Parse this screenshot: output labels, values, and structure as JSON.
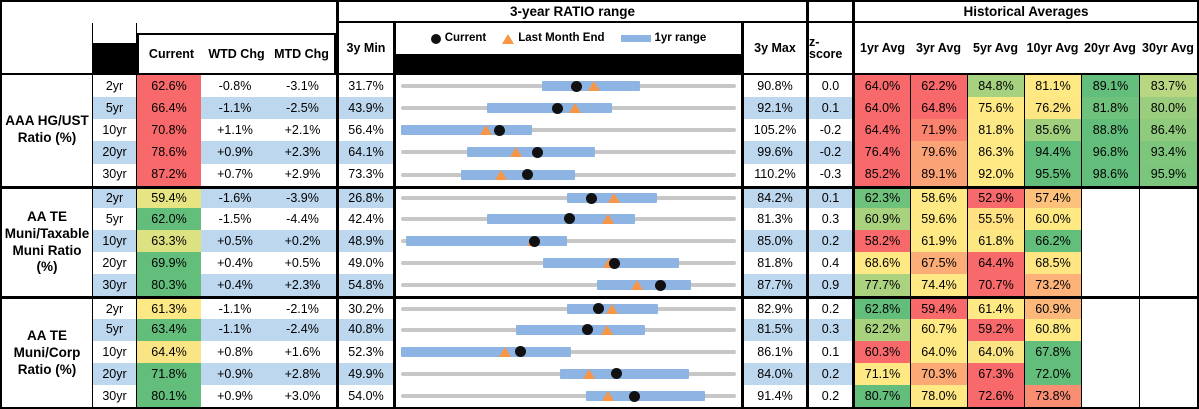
{
  "header": {
    "range_title": "3-year RATIO range",
    "hist_title": "Historical Averages",
    "col_current": "Current",
    "col_wtd": "WTD Chg",
    "col_mtd": "MTD Chg",
    "col_min": "3y Min",
    "col_max": "3y Max",
    "col_z": "z-score",
    "avg_cols": [
      "1yr Avg",
      "3yr Avg",
      "5yr Avg",
      "10yr Avg",
      "20yr Avg",
      "30yr Avg"
    ],
    "legend": {
      "current": "Current",
      "last_month": "Last Month End",
      "range": "1yr range"
    }
  },
  "colors": {
    "stripe": "#BDD7EE",
    "bar": "#8DB4E3",
    "track": "#C7C7C7",
    "triangle": "#F79646",
    "dot": "#111111",
    "heat_red": "#F8696B",
    "heat_yellow": "#FFE984",
    "heat_green": "#63BE7B"
  },
  "chart_data": {
    "type": "table",
    "groups": [
      {
        "label": "AAA HG/UST\nRatio (%)",
        "rows": [
          {
            "tenor": "2yr",
            "current": "62.6%",
            "current_bg": "#F8696B",
            "wtd_chg": "-0.8%",
            "mtd_chg": "-3.1%",
            "min_3y": 31.7,
            "max_3y": 90.8,
            "z_score": "0.0",
            "last_month_end": 65.7,
            "range_1yr": [
              56.5,
              73.8
            ],
            "averages": [
              {
                "v": "64.0%",
                "c": "#F8696B"
              },
              {
                "v": "62.2%",
                "c": "#F8696B"
              },
              {
                "v": "84.8%",
                "c": "#A6D17F"
              },
              {
                "v": "81.1%",
                "c": "#FFE984"
              },
              {
                "v": "89.1%",
                "c": "#63BE7B"
              },
              {
                "v": "83.7%",
                "c": "#B9D780"
              }
            ]
          },
          {
            "tenor": "5yr",
            "current": "66.4%",
            "current_bg": "#F8696B",
            "wtd_chg": "-1.1%",
            "mtd_chg": "-2.5%",
            "min_3y": 43.9,
            "max_3y": 92.1,
            "z_score": "0.1",
            "last_month_end": 68.9,
            "range_1yr": [
              56.3,
              74.3
            ],
            "averages": [
              {
                "v": "64.0%",
                "c": "#F8696B"
              },
              {
                "v": "64.8%",
                "c": "#F8696B"
              },
              {
                "v": "75.6%",
                "c": "#FFE984"
              },
              {
                "v": "76.2%",
                "c": "#FEE683"
              },
              {
                "v": "81.8%",
                "c": "#6FC27C"
              },
              {
                "v": "80.0%",
                "c": "#9BCD7E"
              }
            ]
          },
          {
            "tenor": "10yr",
            "current": "70.8%",
            "current_bg": "#F8696B",
            "wtd_chg": "+1.1%",
            "mtd_chg": "+2.1%",
            "min_3y": 56.4,
            "max_3y": 105.2,
            "z_score": "-0.2",
            "last_month_end": 68.7,
            "range_1yr": [
              56.4,
              75.5
            ],
            "averages": [
              {
                "v": "64.4%",
                "c": "#F8696B"
              },
              {
                "v": "71.9%",
                "c": "#F9836F"
              },
              {
                "v": "81.8%",
                "c": "#FCE884"
              },
              {
                "v": "85.6%",
                "c": "#A0CF7E"
              },
              {
                "v": "88.8%",
                "c": "#63BE7B"
              },
              {
                "v": "86.4%",
                "c": "#8FCA7D"
              }
            ]
          },
          {
            "tenor": "20yr",
            "current": "78.6%",
            "current_bg": "#F8696B",
            "wtd_chg": "+0.9%",
            "mtd_chg": "+2.3%",
            "min_3y": 64.1,
            "max_3y": 99.6,
            "z_score": "-0.2",
            "last_month_end": 76.3,
            "range_1yr": [
              71.1,
              84.7
            ],
            "averages": [
              {
                "v": "76.4%",
                "c": "#F8696B"
              },
              {
                "v": "79.6%",
                "c": "#FBA376"
              },
              {
                "v": "86.3%",
                "c": "#FFE984"
              },
              {
                "v": "94.4%",
                "c": "#63BE7B"
              },
              {
                "v": "96.8%",
                "c": "#63BE7B"
              },
              {
                "v": "93.4%",
                "c": "#7FC67D"
              }
            ]
          },
          {
            "tenor": "30yr",
            "current": "87.2%",
            "current_bg": "#F8696B",
            "wtd_chg": "+0.7%",
            "mtd_chg": "+2.9%",
            "min_3y": 73.3,
            "max_3y": 110.2,
            "z_score": "-0.3",
            "last_month_end": 84.3,
            "range_1yr": [
              79.9,
              92.5
            ],
            "averages": [
              {
                "v": "85.2%",
                "c": "#F8696B"
              },
              {
                "v": "89.1%",
                "c": "#FBA376"
              },
              {
                "v": "92.0%",
                "c": "#FFE984"
              },
              {
                "v": "95.5%",
                "c": "#63BE7B"
              },
              {
                "v": "98.6%",
                "c": "#63BE7B"
              },
              {
                "v": "95.9%",
                "c": "#7CC57D"
              }
            ]
          }
        ]
      },
      {
        "label": "AA TE\nMuni/Taxable\nMuni Ratio\n(%)",
        "rows": [
          {
            "tenor": "2yr",
            "current": "59.4%",
            "current_bg": "#E7E583",
            "wtd_chg": "-1.6%",
            "mtd_chg": "-3.9%",
            "min_3y": 26.8,
            "max_3y": 84.2,
            "z_score": "0.1",
            "last_month_end": 63.3,
            "range_1yr": [
              55.2,
              70.6
            ],
            "averages": [
              {
                "v": "62.3%",
                "c": "#6EC27C"
              },
              {
                "v": "58.6%",
                "c": "#FFE984"
              },
              {
                "v": "52.9%",
                "c": "#F8696B"
              },
              {
                "v": "57.4%",
                "c": "#FDC17C"
              },
              null,
              null
            ]
          },
          {
            "tenor": "5yr",
            "current": "62.0%",
            "current_bg": "#63BE7B",
            "wtd_chg": "-1.5%",
            "mtd_chg": "-4.4%",
            "min_3y": 42.4,
            "max_3y": 81.3,
            "z_score": "0.3",
            "last_month_end": 66.4,
            "range_1yr": [
              52.4,
              69.6
            ],
            "averages": [
              {
                "v": "60.9%",
                "c": "#A9D27F"
              },
              {
                "v": "59.6%",
                "c": "#FFE984"
              },
              {
                "v": "55.5%",
                "c": "#FFE182"
              },
              {
                "v": "60.0%",
                "c": "#FEE983"
              },
              null,
              null
            ]
          },
          {
            "tenor": "10yr",
            "current": "63.3%",
            "current_bg": "#DCE182",
            "wtd_chg": "+0.5%",
            "mtd_chg": "+0.2%",
            "min_3y": 48.9,
            "max_3y": 85.0,
            "z_score": "0.2",
            "last_month_end": 63.1,
            "range_1yr": [
              49.4,
              66.8
            ],
            "averages": [
              {
                "v": "58.2%",
                "c": "#F8696B"
              },
              {
                "v": "61.9%",
                "c": "#FFE984"
              },
              {
                "v": "61.8%",
                "c": "#FDE783"
              },
              {
                "v": "66.2%",
                "c": "#63BE7B"
              },
              null,
              null
            ]
          },
          {
            "tenor": "20yr",
            "current": "69.9%",
            "current_bg": "#63BE7B",
            "wtd_chg": "+0.4%",
            "mtd_chg": "+0.5%",
            "min_3y": 49.0,
            "max_3y": 81.8,
            "z_score": "0.4",
            "last_month_end": 69.4,
            "range_1yr": [
              62.9,
              76.2
            ],
            "averages": [
              {
                "v": "68.6%",
                "c": "#FFE984"
              },
              {
                "v": "67.5%",
                "c": "#FCAC77"
              },
              {
                "v": "64.4%",
                "c": "#F8696B"
              },
              {
                "v": "68.5%",
                "c": "#FFE683"
              },
              null,
              null
            ]
          },
          {
            "tenor": "30yr",
            "current": "80.3%",
            "current_bg": "#63BE7B",
            "wtd_chg": "+0.4%",
            "mtd_chg": "+2.3%",
            "min_3y": 54.8,
            "max_3y": 87.7,
            "z_score": "0.9",
            "last_month_end": 78.0,
            "range_1yr": [
              74.1,
              83.3
            ],
            "averages": [
              {
                "v": "77.7%",
                "c": "#ABD37F"
              },
              {
                "v": "74.4%",
                "c": "#FFE984"
              },
              {
                "v": "70.7%",
                "c": "#F8696B"
              },
              {
                "v": "73.2%",
                "c": "#FCB278"
              },
              null,
              null
            ]
          }
        ]
      },
      {
        "label": "AA TE\nMuni/Corp\nRatio (%)",
        "rows": [
          {
            "tenor": "2yr",
            "current": "61.3%",
            "current_bg": "#FCE884",
            "wtd_chg": "-1.1%",
            "mtd_chg": "-2.1%",
            "min_3y": 30.2,
            "max_3y": 82.9,
            "z_score": "0.2",
            "last_month_end": 63.4,
            "range_1yr": [
              56.3,
              70.7
            ],
            "averages": [
              {
                "v": "62.8%",
                "c": "#63BE7B"
              },
              {
                "v": "59.4%",
                "c": "#F8696B"
              },
              {
                "v": "61.4%",
                "c": "#FFE984"
              },
              {
                "v": "60.9%",
                "c": "#FCB87A"
              },
              null,
              null
            ]
          },
          {
            "tenor": "5yr",
            "current": "63.4%",
            "current_bg": "#63BE7B",
            "wtd_chg": "-1.1%",
            "mtd_chg": "-2.4%",
            "min_3y": 40.8,
            "max_3y": 81.5,
            "z_score": "0.3",
            "last_month_end": 65.8,
            "range_1yr": [
              54.8,
              70.5
            ],
            "averages": [
              {
                "v": "62.2%",
                "c": "#A9D27F"
              },
              {
                "v": "60.7%",
                "c": "#FFE984"
              },
              {
                "v": "59.2%",
                "c": "#F8696B"
              },
              {
                "v": "60.8%",
                "c": "#FEE983"
              },
              null,
              null
            ]
          },
          {
            "tenor": "10yr",
            "current": "64.4%",
            "current_bg": "#FAE585",
            "wtd_chg": "+0.8%",
            "mtd_chg": "+1.6%",
            "min_3y": 52.3,
            "max_3y": 86.1,
            "z_score": "0.1",
            "last_month_end": 62.8,
            "range_1yr": [
              52.3,
              69.5
            ],
            "averages": [
              {
                "v": "60.3%",
                "c": "#F8696B"
              },
              {
                "v": "64.0%",
                "c": "#FFE984"
              },
              {
                "v": "64.0%",
                "c": "#FAE483"
              },
              {
                "v": "67.8%",
                "c": "#63BE7B"
              },
              null,
              null
            ]
          },
          {
            "tenor": "20yr",
            "current": "71.8%",
            "current_bg": "#63BE7B",
            "wtd_chg": "+0.9%",
            "mtd_chg": "+2.8%",
            "min_3y": 49.9,
            "max_3y": 84.0,
            "z_score": "0.2",
            "last_month_end": 69.0,
            "range_1yr": [
              66.1,
              79.2
            ],
            "averages": [
              {
                "v": "71.1%",
                "c": "#FFE984"
              },
              {
                "v": "70.3%",
                "c": "#FCA976"
              },
              {
                "v": "67.3%",
                "c": "#F8696B"
              },
              {
                "v": "72.0%",
                "c": "#63BE7B"
              },
              null,
              null
            ]
          },
          {
            "tenor": "30yr",
            "current": "80.1%",
            "current_bg": "#63BE7B",
            "wtd_chg": "+0.9%",
            "mtd_chg": "+3.0%",
            "min_3y": 54.0,
            "max_3y": 91.4,
            "z_score": "0.2",
            "last_month_end": 77.1,
            "range_1yr": [
              74.6,
              88.0
            ],
            "averages": [
              {
                "v": "80.7%",
                "c": "#63BE7B"
              },
              {
                "v": "78.0%",
                "c": "#FFE984"
              },
              {
                "v": "72.6%",
                "c": "#F8696B"
              },
              {
                "v": "73.8%",
                "c": "#F98E72"
              },
              null,
              null
            ]
          }
        ]
      }
    ]
  }
}
